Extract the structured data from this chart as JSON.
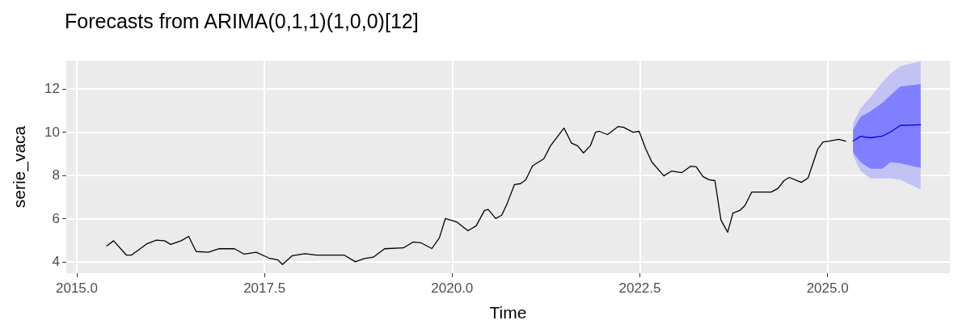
{
  "chart_data": {
    "type": "line",
    "title": "Forecasts from ARIMA(0,1,1)(1,0,0)[12]",
    "xlabel": "Time",
    "ylabel": "serie_vaca",
    "xlim": [
      2014.86,
      2026.63
    ],
    "ylim": [
      3.47,
      13.3
    ],
    "xticks": [
      {
        "value": 2015,
        "label": "2015.0"
      },
      {
        "value": 2017.5,
        "label": "2017.5"
      },
      {
        "value": 2020,
        "label": "2020.0"
      },
      {
        "value": 2022.5,
        "label": "2022.5"
      },
      {
        "value": 2025,
        "label": "2025.0"
      }
    ],
    "yticks": [
      4,
      6,
      8,
      10,
      12
    ],
    "grid": true,
    "marker": "none",
    "line_style": "solid",
    "series": [
      {
        "color": "#000000",
        "x": [
          2015.4,
          2015.49,
          2015.66,
          2015.73,
          2015.94,
          2016.06,
          2016.17,
          2016.25,
          2016.39,
          2016.49,
          2016.59,
          2016.75,
          2016.89,
          2017.1,
          2017.23,
          2017.39,
          2017.56,
          2017.68,
          2017.74,
          2017.87,
          2018.04,
          2018.19,
          2018.56,
          2018.71,
          2018.83,
          2018.95,
          2019.1,
          2019.35,
          2019.48,
          2019.58,
          2019.73,
          2019.83,
          2019.91,
          2020.06,
          2020.21,
          2020.32,
          2020.43,
          2020.48,
          2020.58,
          2020.66,
          2020.73,
          2020.83,
          2020.91,
          2020.98,
          2021.07,
          2021.22,
          2021.31,
          2021.49,
          2021.59,
          2021.67,
          2021.75,
          2021.84,
          2021.91,
          2021.96,
          2022.07,
          2022.21,
          2022.28,
          2022.41,
          2022.49,
          2022.58,
          2022.66,
          2022.82,
          2022.92,
          2023.06,
          2023.18,
          2023.25,
          2023.34,
          2023.42,
          2023.5,
          2023.58,
          2023.67,
          2023.74,
          2023.83,
          2023.9,
          2023.99,
          2024.25,
          2024.34,
          2024.42,
          2024.49,
          2024.65,
          2024.74,
          2024.87,
          2024.94,
          2025.02,
          2025.15,
          2025.24
        ],
        "values": [
          4.73,
          4.97,
          4.31,
          4.31,
          4.84,
          5.0,
          4.97,
          4.8,
          4.97,
          5.17,
          4.47,
          4.44,
          4.6,
          4.6,
          4.35,
          4.44,
          4.17,
          4.08,
          3.87,
          4.28,
          4.37,
          4.31,
          4.31,
          4.0,
          4.15,
          4.21,
          4.6,
          4.64,
          4.91,
          4.88,
          4.61,
          5.11,
          6.0,
          5.84,
          5.43,
          5.66,
          6.37,
          6.42,
          6.0,
          6.15,
          6.67,
          7.57,
          7.61,
          7.79,
          8.43,
          8.76,
          9.36,
          10.18,
          9.48,
          9.36,
          9.03,
          9.36,
          9.99,
          10.03,
          9.88,
          10.25,
          10.22,
          9.99,
          10.03,
          9.21,
          8.61,
          7.97,
          8.19,
          8.12,
          8.42,
          8.39,
          7.94,
          7.79,
          7.75,
          5.93,
          5.36,
          6.25,
          6.37,
          6.6,
          7.22,
          7.22,
          7.39,
          7.75,
          7.9,
          7.67,
          7.87,
          9.21,
          9.54,
          9.58,
          9.66,
          9.58
        ]
      },
      {
        "color": "#c2c2f4",
        "x": [
          2025.34,
          2025.44,
          2025.57,
          2025.73,
          2025.84,
          2025.97,
          2026.24
        ],
        "values": [
          null,
          null,
          null,
          null,
          null,
          null,
          null
        ],
        "lower": [
          8.91,
          8.2,
          7.85,
          7.85,
          7.85,
          7.8,
          7.34
        ],
        "upper": [
          10.4,
          11.1,
          11.6,
          12.3,
          12.7,
          13.05,
          13.27
        ]
      },
      {
        "color": "#0000ff",
        "x": [
          2025.34,
          2025.44,
          2025.57,
          2025.73,
          2025.84,
          2025.97,
          2026.24
        ],
        "values": [
          9.58,
          9.8,
          9.73,
          9.81,
          10.0,
          10.3,
          10.33
        ],
        "lower": [
          9.06,
          8.6,
          8.3,
          8.3,
          8.6,
          8.55,
          8.34
        ],
        "upper": [
          10.1,
          10.7,
          10.95,
          11.35,
          11.7,
          12.1,
          12.22
        ]
      }
    ]
  }
}
